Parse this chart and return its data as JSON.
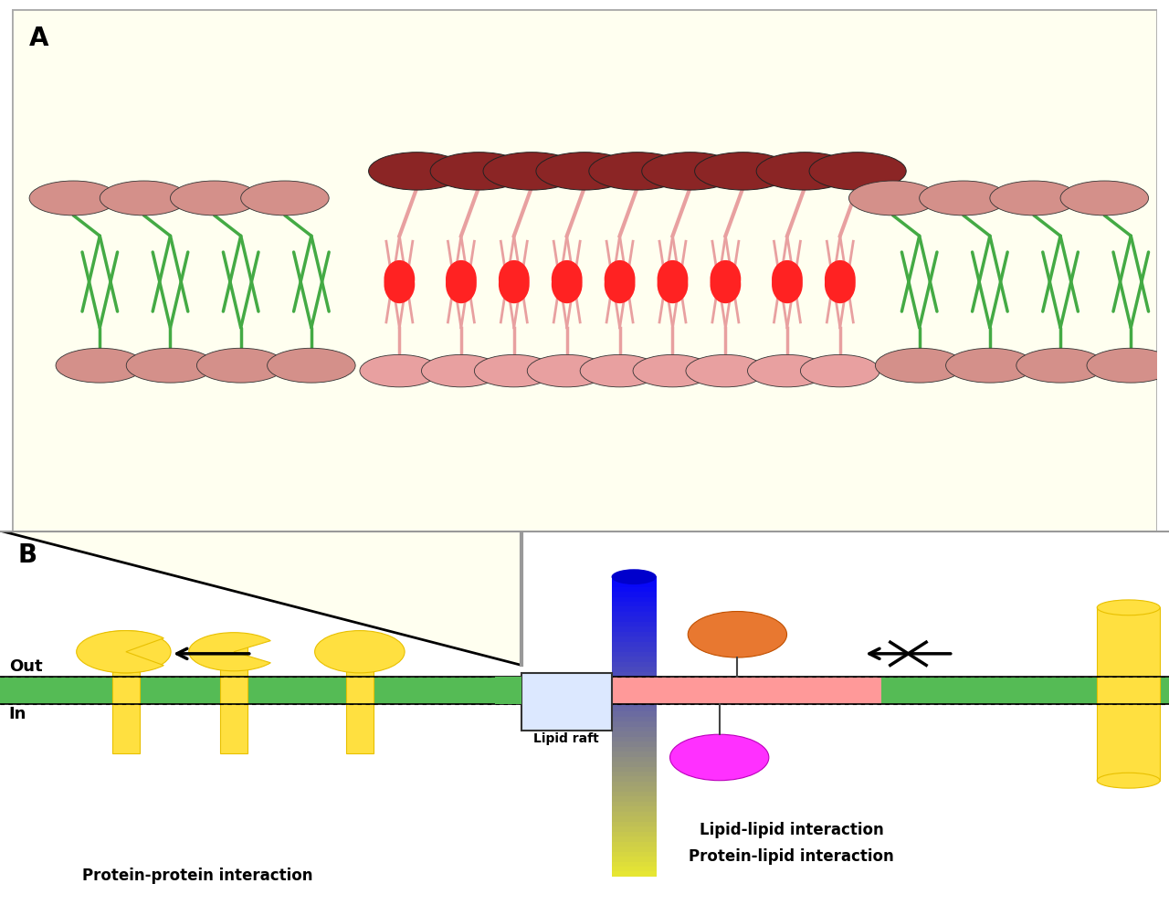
{
  "panel_A_bg": "#FFFFF0",
  "lipid_pink": "#D4908A",
  "lipid_darkred": "#8B2525",
  "lipid_red": "#FF2222",
  "lipid_green": "#44AA44",
  "lipid_pink_raft": "#E8A0A0",
  "membrane_green": "#55BB55",
  "raft_salmon": "#FF9999",
  "blue_dark": "#0000CC",
  "blue_light": "#AACCFF",
  "yellow": "#FFE040",
  "yellow_dark": "#E8C000",
  "orange": "#E87830",
  "magenta": "#FF30FF",
  "label_A": "A",
  "label_B": "B",
  "text_out": "Out",
  "text_in": "In",
  "text_lipid_raft": "Lipid raft",
  "text_pp": "Protein-protein interaction",
  "text_ll": "Lipid-lipid interaction",
  "text_pl": "Protein-lipid interaction"
}
